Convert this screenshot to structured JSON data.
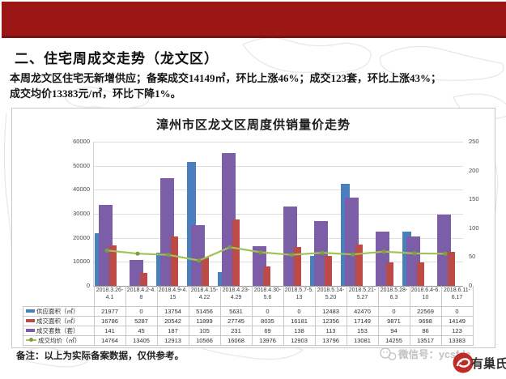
{
  "colors": {
    "banner": "#9c1616",
    "logo_red": "#bf2b26"
  },
  "header": {
    "section_title": "二、住宅周成交走势（龙文区）"
  },
  "summary": {
    "line1": "本周龙文区住宅无新增供应；备案成交14149㎡，环比上涨46%；成交123套，环比上涨43%；",
    "line2": "成交均价13383元/㎡，环比下降1%。"
  },
  "chart_data": {
    "type": "bar",
    "subtype": "combo-bar-line-with-data-table",
    "title": "漳州市区龙文区周度供销量价走势",
    "categories": [
      "2018.3.26-4.1",
      "2018.4.2-4.8",
      "2018.4.9-4.15",
      "2018.4.15-4.22",
      "2018.4.23-4.29",
      "2018.4.30-5.6",
      "2018.5.7-5.13",
      "2018.5.14-5.20",
      "2018.5.21-5.27",
      "2018.5.28-6.3",
      "2018.6.4-6.10",
      "2018.6.11-6.17"
    ],
    "categories_wrapped": [
      [
        "2018.3.26-",
        "4.1"
      ],
      [
        "2018.4.2-4.",
        "8"
      ],
      [
        "2018.4.9-4.",
        "15"
      ],
      [
        "2018.4.15-",
        "4.22"
      ],
      [
        "2018.4.23-",
        "4.29"
      ],
      [
        "2018.4.30-",
        "5.6"
      ],
      [
        "2018.5.7-5.",
        "13"
      ],
      [
        "2018.5.14-",
        "5.20"
      ],
      [
        "2018.5.21-",
        "5.27"
      ],
      [
        "2018.5.28-",
        "6.3"
      ],
      [
        "2018.6.4-6.",
        "10"
      ],
      [
        "2018.6.11-",
        "6.17"
      ]
    ],
    "series": [
      {
        "name": "供应面积（㎡）",
        "type": "bar",
        "axis": "left",
        "color": "#4a7ebc",
        "values": [
          21977,
          0,
          13754,
          51456,
          5631,
          0,
          0,
          12483,
          42470,
          0,
          22569,
          0
        ]
      },
      {
        "name": "成交面积（㎡）",
        "type": "bar",
        "axis": "left",
        "color": "#bc4a47",
        "values": [
          16786,
          5287,
          20542,
          11899,
          27745,
          8035,
          16181,
          12356,
          17149,
          9871,
          9698,
          14149
        ]
      },
      {
        "name": "成交套数（套）",
        "type": "bar",
        "axis": "right",
        "color": "#7b5ea7",
        "values": [
          141,
          45,
          187,
          105,
          231,
          69,
          138,
          113,
          153,
          94,
          86,
          123
        ]
      },
      {
        "name": "成交均价（㎡）",
        "type": "line",
        "axis": "left",
        "color": "#a3c159",
        "marker_color": "#7f9e3d",
        "values": [
          14764,
          13405,
          12913,
          10566,
          16068,
          13976,
          12903,
          13796,
          13081,
          14255,
          13517,
          13383
        ]
      }
    ],
    "left_axis": {
      "min": 0,
      "max": 60000,
      "step": 10000
    },
    "right_axis": {
      "min": 0,
      "max": 250,
      "step": 50
    },
    "grid": true,
    "legend_position": "data-table-left"
  },
  "note": {
    "text": "备注：以上为实际备案数据，仅供参考。"
  },
  "footer": {
    "wechat_label": "微信号：ycsfdc",
    "brand_name": "有巢氏集团"
  }
}
